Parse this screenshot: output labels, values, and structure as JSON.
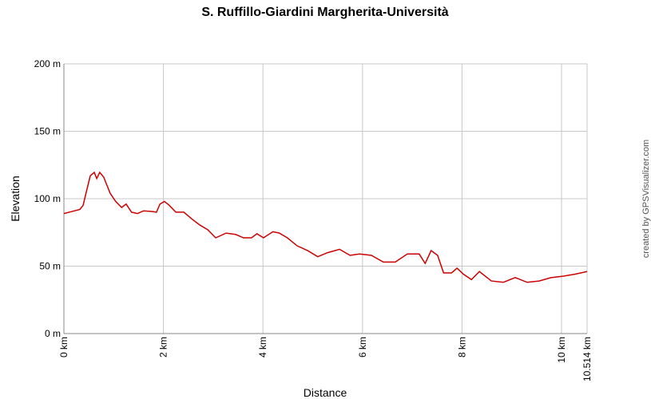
{
  "chart_data": {
    "type": "line",
    "title": "S. Ruffillo-Giardini Margherita-Università",
    "x_label": "Distance",
    "y_label": "Elevation",
    "watermark": "created by GPSVisualizer.com",
    "x": [
      0,
      0.16,
      0.32,
      0.385,
      0.45,
      0.53,
      0.61,
      0.66,
      0.72,
      0.8,
      0.93,
      1.04,
      1.16,
      1.25,
      1.36,
      1.48,
      1.6,
      1.77,
      1.86,
      1.93,
      2.02,
      2.12,
      2.25,
      2.41,
      2.57,
      2.73,
      2.89,
      3.05,
      3.26,
      3.45,
      3.61,
      3.77,
      3.88,
      4.01,
      4.2,
      4.33,
      4.49,
      4.69,
      4.9,
      5.1,
      5.3,
      5.54,
      5.75,
      5.94,
      6.18,
      6.42,
      6.66,
      6.9,
      7.14,
      7.26,
      7.38,
      7.51,
      7.63,
      7.79,
      7.9,
      8.03,
      8.19,
      8.35,
      8.59,
      8.83,
      9.07,
      9.31,
      9.55,
      9.79,
      10.03,
      10.27,
      10.514
    ],
    "series": [
      {
        "name": "Elevation",
        "color": "#cc0000",
        "values": [
          89,
          90.5,
          92,
          95,
          105,
          117,
          119.5,
          115,
          119.5,
          116,
          104,
          98,
          93.5,
          96,
          90,
          89,
          91,
          90.5,
          90,
          96,
          98,
          95,
          90,
          90,
          85,
          80.5,
          77,
          71,
          74.5,
          73.5,
          71,
          71,
          74,
          71,
          75.5,
          74.5,
          71,
          65,
          61.5,
          57,
          60,
          62.5,
          58,
          59,
          58,
          53,
          53,
          59,
          59,
          52,
          61.5,
          58,
          45,
          45,
          48.5,
          44,
          40,
          46,
          39,
          38,
          41.5,
          38,
          39,
          41.5,
          42.5,
          44,
          46
        ]
      }
    ],
    "xlim": [
      0,
      10.514
    ],
    "xticks": [
      {
        "value": 0,
        "label": "0 km"
      },
      {
        "value": 2,
        "label": "2 km"
      },
      {
        "value": 4,
        "label": "4 km"
      },
      {
        "value": 6,
        "label": "6 km"
      },
      {
        "value": 8,
        "label": "8 km"
      },
      {
        "value": 10,
        "label": "10 km"
      },
      {
        "value": 10.514,
        "label": "10.514 km"
      }
    ],
    "ylim": [
      0,
      200
    ],
    "yticks": [
      {
        "value": 0,
        "label": "0 m"
      },
      {
        "value": 50,
        "label": "50 m"
      },
      {
        "value": 100,
        "label": "100 m"
      },
      {
        "value": 150,
        "label": "150 m"
      },
      {
        "value": 200,
        "label": "200 m"
      }
    ],
    "grid": true
  }
}
